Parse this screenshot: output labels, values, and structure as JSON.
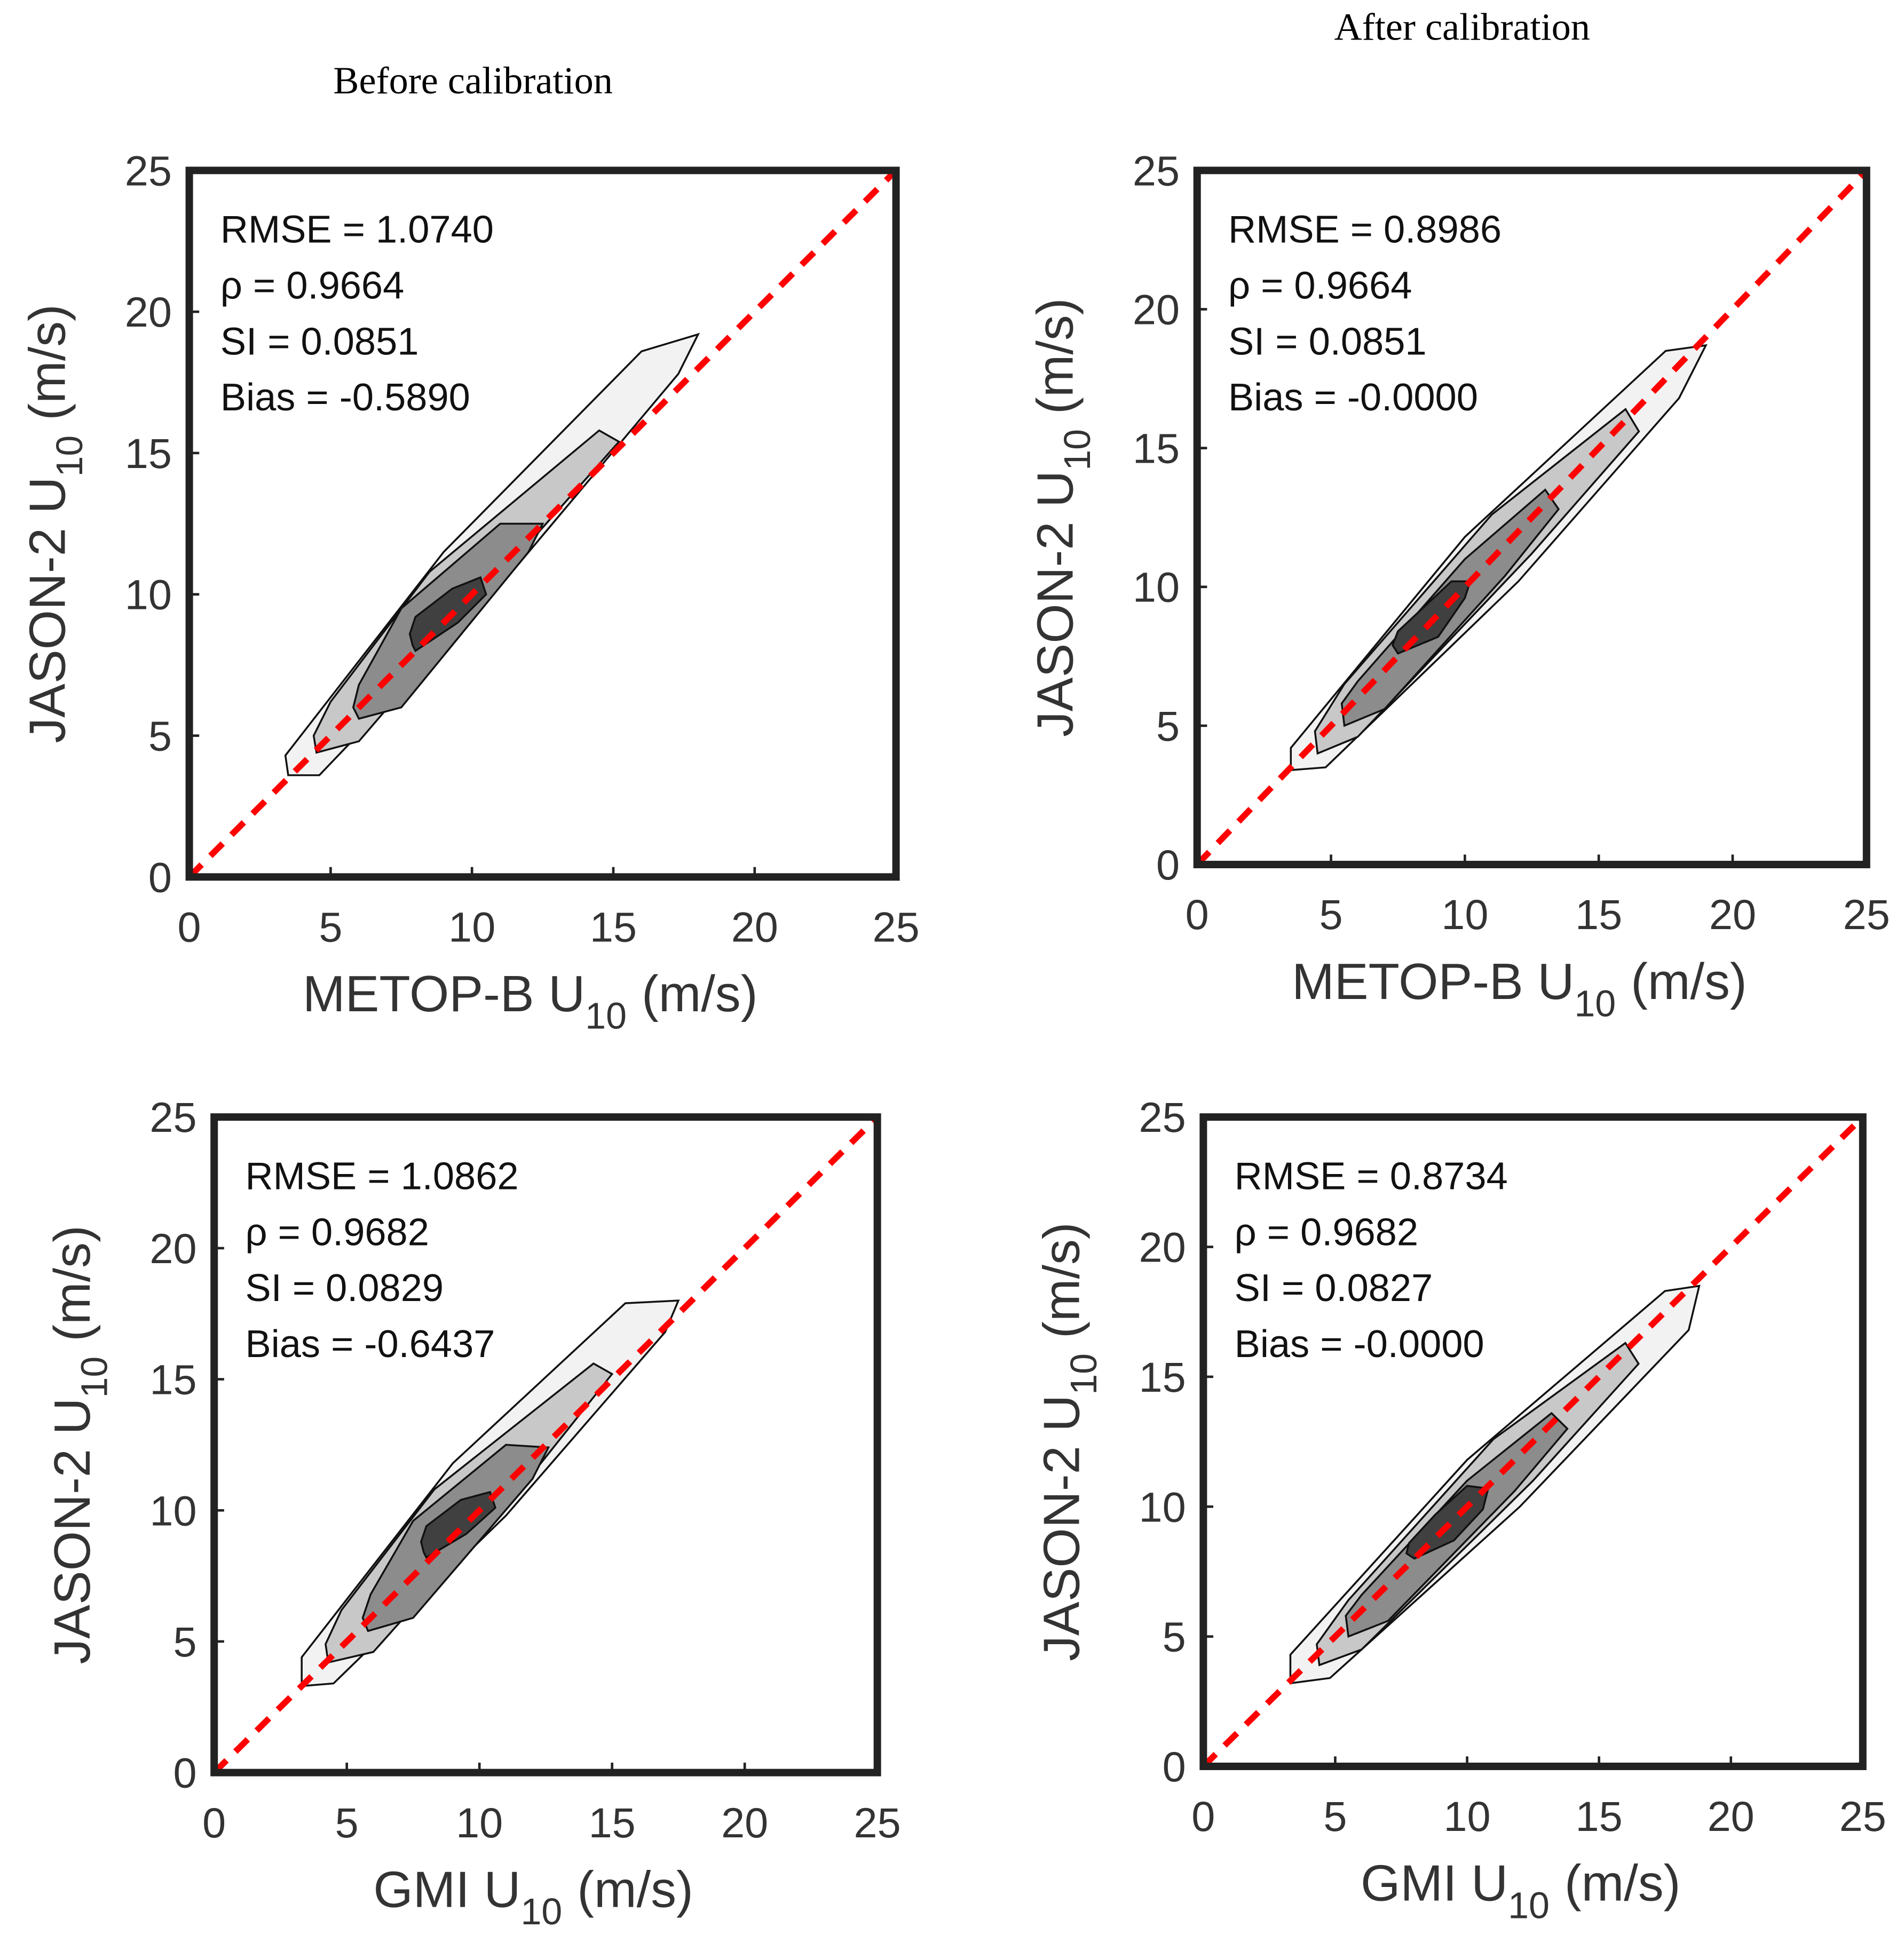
{
  "chart_data": [
    {
      "type": "contour",
      "title": "Before calibration",
      "xlabel": [
        "METOP-B U",
        "10",
        "(m/s)"
      ],
      "ylabel": [
        "JASON-2 U",
        "10",
        "(m/s)"
      ],
      "xlim": [
        0,
        25
      ],
      "ylim": [
        0,
        25
      ],
      "xticks": [
        0,
        5,
        10,
        15,
        20,
        25
      ],
      "yticks": [
        0,
        5,
        10,
        15,
        20,
        25
      ],
      "annotations": [
        "RMSE = 1.0740",
        "ρ = 0.9664",
        "SI = 0.0851",
        "Bias = -0.5890"
      ],
      "reference_line": {
        "x": [
          0,
          25
        ],
        "y": [
          0,
          25
        ],
        "color": "#ff0000"
      },
      "contours": [
        {
          "color": "#f2f2f2",
          "x": [
            3.5,
            4.6,
            11,
            17.3,
            18,
            16,
            9,
            3.4
          ],
          "y": [
            3.6,
            3.6,
            10.3,
            17.8,
            19.2,
            18.6,
            11.5,
            4.3
          ]
        },
        {
          "color": "#c8c8c8",
          "x": [
            4.5,
            6,
            12,
            15.2,
            14.5,
            8.5,
            5,
            4.4
          ],
          "y": [
            4.4,
            4.8,
            11.8,
            15.4,
            15.8,
            10.8,
            6.2,
            5
          ]
        },
        {
          "color": "#8c8c8c",
          "x": [
            6,
            7.5,
            12,
            12.5,
            11,
            7.5,
            6,
            5.8
          ],
          "y": [
            5.6,
            6,
            11.5,
            12.5,
            12.5,
            9.5,
            6.8,
            6
          ]
        },
        {
          "color": "#404040",
          "x": [
            8,
            9.5,
            10.5,
            10.3,
            9.3,
            8,
            7.8,
            7.9
          ],
          "y": [
            8,
            9,
            10,
            10.6,
            10.2,
            9.2,
            8.6,
            8.2
          ]
        }
      ]
    },
    {
      "type": "contour",
      "title": "After calibration",
      "xlabel": [
        "METOP-B U",
        "10",
        "(m/s)"
      ],
      "ylabel": [
        "JASON-2 U",
        "10",
        "(m/s)"
      ],
      "xlim": [
        0,
        25
      ],
      "ylim": [
        0,
        25
      ],
      "xticks": [
        0,
        5,
        10,
        15,
        20,
        25
      ],
      "yticks": [
        0,
        5,
        10,
        15,
        20,
        25
      ],
      "annotations": [
        "RMSE = 0.8986",
        "ρ = 0.9664",
        "SI = 0.0851",
        "Bias = -0.0000"
      ],
      "reference_line": {
        "x": [
          0,
          25
        ],
        "y": [
          0,
          25
        ],
        "color": "#ff0000"
      },
      "contours": [
        {
          "color": "#f2f2f2",
          "x": [
            3.5,
            4.8,
            12,
            18,
            19,
            17.5,
            10,
            3.5
          ],
          "y": [
            3.4,
            3.5,
            10.2,
            16.8,
            18.7,
            18.5,
            11.8,
            4.2
          ]
        },
        {
          "color": "#c8c8c8",
          "x": [
            4.5,
            6,
            12.5,
            16.5,
            16,
            11,
            5.5,
            4.4
          ],
          "y": [
            4,
            4.6,
            11.2,
            15.6,
            16.4,
            12.6,
            6.5,
            4.8
          ]
        },
        {
          "color": "#8c8c8c",
          "x": [
            5.5,
            7,
            11.5,
            13.5,
            13,
            10,
            6,
            5.4
          ],
          "y": [
            5,
            5.6,
            10.4,
            12.8,
            13.5,
            11,
            6.6,
            5.8
          ]
        },
        {
          "color": "#404040",
          "x": [
            7.5,
            9,
            10,
            10.2,
            9.5,
            8.5,
            7.5,
            7.3
          ],
          "y": [
            7.6,
            8.2,
            9.6,
            10.2,
            10.2,
            9.3,
            8.4,
            7.9
          ]
        }
      ]
    },
    {
      "type": "contour",
      "xlabel": [
        "GMI U",
        "10",
        "(m/s)"
      ],
      "ylabel": [
        "JASON-2 U",
        "10",
        "(m/s)"
      ],
      "xlim": [
        0,
        25
      ],
      "ylim": [
        0,
        25
      ],
      "xticks": [
        0,
        5,
        10,
        15,
        20,
        25
      ],
      "yticks": [
        0,
        5,
        10,
        15,
        20,
        25
      ],
      "annotations": [
        "RMSE = 1.0862",
        "ρ = 0.9682",
        "SI = 0.0829",
        "Bias = -0.6437"
      ],
      "reference_line": {
        "x": [
          0,
          25
        ],
        "y": [
          0,
          25
        ],
        "color": "#ff0000"
      },
      "contours": [
        {
          "color": "#f2f2f2",
          "x": [
            3.3,
            4.5,
            11,
            17,
            17.5,
            15.5,
            9,
            3.3
          ],
          "y": [
            3.3,
            3.4,
            9.8,
            16.8,
            18,
            17.9,
            11.8,
            4.4
          ]
        },
        {
          "color": "#c8c8c8",
          "x": [
            4.3,
            6,
            12,
            15,
            14.3,
            8.3,
            4.8,
            4.2
          ],
          "y": [
            4.2,
            4.6,
            11.4,
            15.2,
            15.6,
            10.8,
            6.2,
            4.9
          ]
        },
        {
          "color": "#8c8c8c",
          "x": [
            5.8,
            7.5,
            12,
            12.6,
            11,
            7.5,
            5.9,
            5.6
          ],
          "y": [
            5.4,
            5.9,
            11.2,
            12.4,
            12.5,
            9.6,
            6.8,
            5.9
          ]
        },
        {
          "color": "#404040",
          "x": [
            8,
            9.5,
            10.6,
            10.4,
            9.3,
            8,
            7.8,
            7.9
          ],
          "y": [
            8.2,
            9.1,
            10.1,
            10.7,
            10.4,
            9.4,
            8.8,
            8.4
          ]
        }
      ]
    },
    {
      "type": "contour",
      "xlabel": [
        "GMI U",
        "10",
        "(m/s)"
      ],
      "ylabel": [
        "JASON-2 U",
        "10",
        "(m/s)"
      ],
      "xlim": [
        0,
        25
      ],
      "ylim": [
        0,
        25
      ],
      "xticks": [
        0,
        5,
        10,
        15,
        20,
        25
      ],
      "yticks": [
        0,
        5,
        10,
        15,
        20,
        25
      ],
      "annotations": [
        "RMSE = 0.8734",
        "ρ = 0.9682",
        "SI = 0.0827",
        "Bias = -0.0000"
      ],
      "reference_line": {
        "x": [
          0,
          25
        ],
        "y": [
          0,
          25
        ],
        "color": "#ff0000"
      },
      "contours": [
        {
          "color": "#f2f2f2",
          "x": [
            3.3,
            4.8,
            12,
            18.4,
            18.8,
            17.5,
            10,
            3.3
          ],
          "y": [
            3.2,
            3.4,
            10,
            16.8,
            18.5,
            18.3,
            11.8,
            4.3
          ]
        },
        {
          "color": "#c8c8c8",
          "x": [
            4.4,
            6,
            12.5,
            16.5,
            16,
            11,
            5.5,
            4.3
          ],
          "y": [
            3.9,
            4.5,
            11,
            15.5,
            16.3,
            12.6,
            6.4,
            4.7
          ]
        },
        {
          "color": "#8c8c8c",
          "x": [
            5.5,
            7,
            11.8,
            13.8,
            13.2,
            10,
            6,
            5.4
          ],
          "y": [
            5,
            5.6,
            10.6,
            13,
            13.6,
            11,
            6.6,
            5.8
          ]
        },
        {
          "color": "#404040",
          "x": [
            8,
            9.5,
            10.6,
            10.8,
            10,
            8.8,
            7.8,
            7.7
          ],
          "y": [
            8,
            8.7,
            9.9,
            10.7,
            10.8,
            9.7,
            8.6,
            8.2
          ]
        }
      ]
    }
  ]
}
